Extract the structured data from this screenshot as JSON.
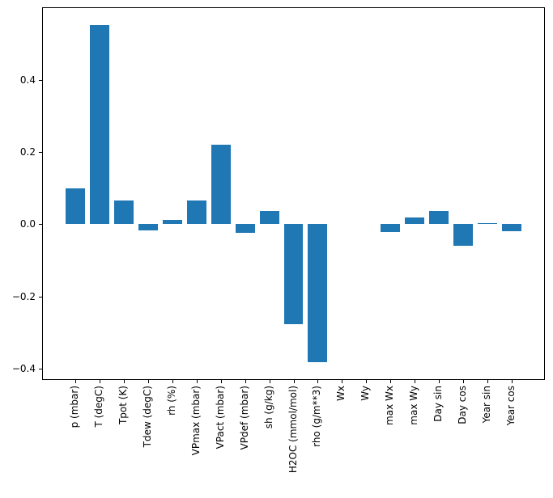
{
  "figure": {
    "background_color": "#ffffff",
    "frame_color": "#000000",
    "tick_color": "#000000",
    "text_color": "#000000"
  },
  "chart_data": {
    "type": "bar",
    "title": "",
    "xlabel": "",
    "ylabel": "",
    "grid": false,
    "legend_position": "none",
    "bar_color": "#1f77b4",
    "bar_width": 0.8,
    "x_tick_rotation": 90,
    "categories": [
      "p (mbar)",
      "T (degC)",
      "Tpot (K)",
      "Tdew (degC)",
      "rh (%)",
      "VPmax (mbar)",
      "VPact (mbar)",
      "VPdef (mbar)",
      "sh (g/kg)",
      "H2OC (mmol/mol)",
      "rho (g/m**3)",
      "Wx",
      "Wy",
      "max Wx",
      "max Wy",
      "Day sin",
      "Day cos",
      "Year sin",
      "Year cos"
    ],
    "values": [
      0.1,
      0.552,
      0.065,
      -0.016,
      0.013,
      0.066,
      0.221,
      -0.023,
      0.036,
      -0.277,
      -0.382,
      0.0,
      0.0,
      -0.022,
      0.019,
      0.036,
      -0.06,
      0.004,
      -0.019
    ],
    "ylim": [
      -0.43,
      0.6
    ],
    "xlim": [
      -1.34,
      19.34
    ],
    "ytick_values": [
      0.4,
      0.2,
      0.0,
      -0.2,
      -0.4
    ],
    "ytick_labels": [
      "0.4",
      "0.2",
      "0.0",
      "−0.2",
      "−0.4"
    ]
  }
}
